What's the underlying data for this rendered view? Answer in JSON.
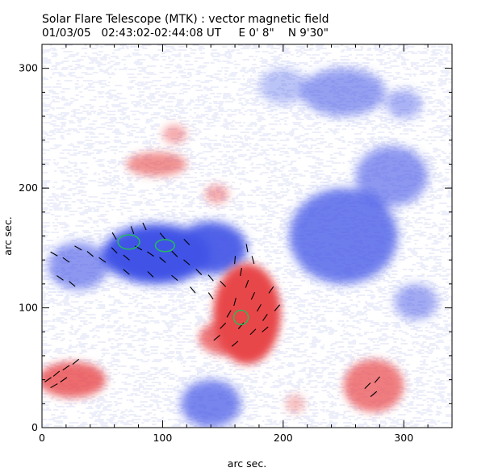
{
  "header": {
    "title": "Solar Flare Telescope (MTK) : vector magnetic field",
    "subtitle": "01/03/05   02:43:02-02:44:08 UT     E 0' 8\"    N 9'30\""
  },
  "chart_data": {
    "type": "heatmap",
    "xlabel": "arc sec.",
    "ylabel": "arc sec.",
    "xlim": [
      0,
      340
    ],
    "ylim": [
      0,
      320
    ],
    "x_ticks": [
      0,
      100,
      200,
      300
    ],
    "y_ticks": [
      0,
      100,
      200,
      300
    ],
    "x_minor_step": 20,
    "y_minor_step": 20,
    "grid": false,
    "colors": {
      "positive": "#e8474a",
      "negative": "#3f52e6",
      "noise": "#b9bfec",
      "vectors": "#000000",
      "contours": "#22c05a"
    },
    "negative_regions": [
      {
        "cx": 95,
        "cy": 145,
        "rx": 45,
        "ry": 25,
        "w": 1.0
      },
      {
        "cx": 140,
        "cy": 150,
        "rx": 30,
        "ry": 22,
        "w": 0.9
      },
      {
        "cx": 30,
        "cy": 135,
        "rx": 25,
        "ry": 20,
        "w": 0.6
      },
      {
        "cx": 250,
        "cy": 160,
        "rx": 45,
        "ry": 40,
        "w": 0.75
      },
      {
        "cx": 290,
        "cy": 210,
        "rx": 30,
        "ry": 25,
        "w": 0.6
      },
      {
        "cx": 250,
        "cy": 280,
        "rx": 35,
        "ry": 20,
        "w": 0.55
      },
      {
        "cx": 310,
        "cy": 105,
        "rx": 18,
        "ry": 15,
        "w": 0.5
      },
      {
        "cx": 140,
        "cy": 20,
        "rx": 25,
        "ry": 20,
        "w": 0.7
      },
      {
        "cx": 300,
        "cy": 270,
        "rx": 15,
        "ry": 12,
        "w": 0.45
      },
      {
        "cx": 200,
        "cy": 285,
        "rx": 20,
        "ry": 15,
        "w": 0.35
      }
    ],
    "positive_regions": [
      {
        "cx": 170,
        "cy": 95,
        "rx": 28,
        "ry": 42,
        "w": 1.0
      },
      {
        "cx": 155,
        "cy": 75,
        "rx": 25,
        "ry": 15,
        "w": 0.75
      },
      {
        "cx": 25,
        "cy": 40,
        "rx": 28,
        "ry": 15,
        "w": 0.8
      },
      {
        "cx": 275,
        "cy": 35,
        "rx": 25,
        "ry": 22,
        "w": 0.7
      },
      {
        "cx": 95,
        "cy": 220,
        "rx": 25,
        "ry": 10,
        "w": 0.6
      },
      {
        "cx": 110,
        "cy": 245,
        "rx": 10,
        "ry": 8,
        "w": 0.45
      },
      {
        "cx": 145,
        "cy": 195,
        "rx": 10,
        "ry": 8,
        "w": 0.45
      },
      {
        "cx": 210,
        "cy": 20,
        "rx": 8,
        "ry": 8,
        "w": 0.35
      }
    ],
    "vectors": [
      {
        "x": 10,
        "y": 145,
        "a": -30
      },
      {
        "x": 20,
        "y": 140,
        "a": -35
      },
      {
        "x": 30,
        "y": 150,
        "a": -30
      },
      {
        "x": 40,
        "y": 145,
        "a": -40
      },
      {
        "x": 50,
        "y": 140,
        "a": -35
      },
      {
        "x": 60,
        "y": 148,
        "a": -45
      },
      {
        "x": 70,
        "y": 142,
        "a": -40
      },
      {
        "x": 80,
        "y": 150,
        "a": -30
      },
      {
        "x": 90,
        "y": 145,
        "a": -35
      },
      {
        "x": 100,
        "y": 140,
        "a": -40
      },
      {
        "x": 110,
        "y": 145,
        "a": -45
      },
      {
        "x": 120,
        "y": 138,
        "a": -40
      },
      {
        "x": 130,
        "y": 130,
        "a": -45
      },
      {
        "x": 140,
        "y": 125,
        "a": -50
      },
      {
        "x": 150,
        "y": 120,
        "a": -45
      },
      {
        "x": 15,
        "y": 125,
        "a": -35
      },
      {
        "x": 25,
        "y": 120,
        "a": -40
      },
      {
        "x": 60,
        "y": 160,
        "a": -60
      },
      {
        "x": 75,
        "y": 165,
        "a": -70
      },
      {
        "x": 85,
        "y": 168,
        "a": -65
      },
      {
        "x": 100,
        "y": 160,
        "a": -50
      },
      {
        "x": 120,
        "y": 155,
        "a": -45
      },
      {
        "x": 70,
        "y": 130,
        "a": -40
      },
      {
        "x": 90,
        "y": 128,
        "a": -45
      },
      {
        "x": 110,
        "y": 125,
        "a": -40
      },
      {
        "x": 125,
        "y": 115,
        "a": -50
      },
      {
        "x": 140,
        "y": 110,
        "a": -55
      },
      {
        "x": 160,
        "y": 140,
        "a": 85
      },
      {
        "x": 165,
        "y": 130,
        "a": 80
      },
      {
        "x": 170,
        "y": 120,
        "a": 70
      },
      {
        "x": 175,
        "y": 110,
        "a": 65
      },
      {
        "x": 180,
        "y": 100,
        "a": 60
      },
      {
        "x": 185,
        "y": 92,
        "a": 55
      },
      {
        "x": 160,
        "y": 105,
        "a": 75
      },
      {
        "x": 155,
        "y": 95,
        "a": 60
      },
      {
        "x": 165,
        "y": 85,
        "a": 50
      },
      {
        "x": 175,
        "y": 80,
        "a": 45
      },
      {
        "x": 185,
        "y": 82,
        "a": 40
      },
      {
        "x": 150,
        "y": 85,
        "a": 45
      },
      {
        "x": 160,
        "y": 70,
        "a": 40
      },
      {
        "x": 170,
        "y": 150,
        "a": -80
      },
      {
        "x": 175,
        "y": 140,
        "a": -75
      },
      {
        "x": 190,
        "y": 115,
        "a": 55
      },
      {
        "x": 195,
        "y": 100,
        "a": 50
      },
      {
        "x": 145,
        "y": 75,
        "a": 40
      },
      {
        "x": 5,
        "y": 40,
        "a": 35
      },
      {
        "x": 12,
        "y": 45,
        "a": 40
      },
      {
        "x": 20,
        "y": 50,
        "a": 35
      },
      {
        "x": 10,
        "y": 35,
        "a": 30
      },
      {
        "x": 18,
        "y": 40,
        "a": 35
      },
      {
        "x": 28,
        "y": 55,
        "a": 40
      },
      {
        "x": 270,
        "y": 35,
        "a": 45
      },
      {
        "x": 278,
        "y": 40,
        "a": 50
      },
      {
        "x": 275,
        "y": 28,
        "a": 40
      }
    ],
    "contours": [
      {
        "cx": 72,
        "cy": 155,
        "rx": 9,
        "ry": 6
      },
      {
        "cx": 102,
        "cy": 152,
        "rx": 8,
        "ry": 5
      },
      {
        "cx": 165,
        "cy": 92,
        "rx": 6,
        "ry": 6
      }
    ]
  }
}
